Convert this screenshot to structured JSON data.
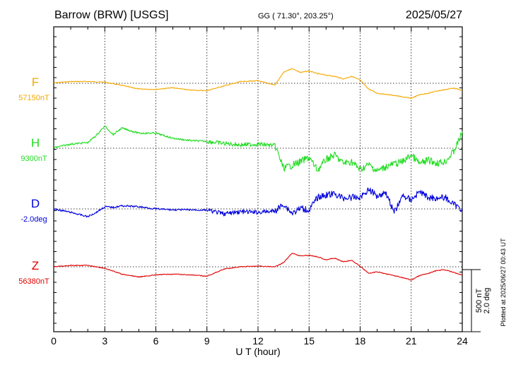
{
  "header": {
    "station": "Barrow (BRW)  [USGS]",
    "coords": "GG ( 71.30°, 203.25°)",
    "date": "2025/05/27"
  },
  "footer_note": "Plotted at 2025/06/27 00:43 UT",
  "scale_label_nt": "500 nT",
  "scale_label_deg": "2.0 deg",
  "colors": {
    "F": "#f5a800",
    "H": "#22dd22",
    "D": "#0000dd",
    "Z": "#e00000",
    "grid": "#000000"
  },
  "chart_data": {
    "type": "line",
    "title": "Barrow (BRW)  [USGS]",
    "xlabel": "U T (hour)",
    "ylabel": "",
    "xlim": [
      0,
      24
    ],
    "xticks": [
      "0",
      "3",
      "6",
      "9",
      "12",
      "15",
      "18",
      "21",
      "24"
    ],
    "grid": true,
    "scale_bar": {
      "nT": 500,
      "deg": 2.0
    },
    "series": [
      {
        "name": "F",
        "baseline_label": "57150nT",
        "unit": "nT",
        "baseline": 57150,
        "x": [
          0,
          1,
          2,
          3,
          4,
          5,
          6,
          7,
          8,
          9,
          10,
          11,
          12,
          13,
          13.5,
          14,
          14.5,
          15,
          15.5,
          16,
          16.5,
          17,
          17.5,
          18,
          18.5,
          19,
          20,
          21,
          21.5,
          22,
          22.5,
          23,
          23.5,
          24
        ],
        "values": [
          57153,
          57164,
          57164,
          57159,
          57133,
          57104,
          57101,
          57114,
          57095,
          57091,
          57129,
          57164,
          57170,
          57136,
          57237,
          57269,
          57237,
          57249,
          57227,
          57216,
          57206,
          57185,
          57206,
          57175,
          57104,
          57070,
          57052,
          57029,
          57058,
          57070,
          57088,
          57099,
          57112,
          57091
        ]
      },
      {
        "name": "H",
        "baseline_label": "9300nT",
        "unit": "nT",
        "baseline": 9300,
        "x": [
          0,
          1,
          2,
          2.5,
          3,
          3.5,
          4,
          5,
          6,
          7,
          8,
          9,
          10,
          11,
          12,
          13,
          13.5,
          14,
          14.5,
          15,
          15.5,
          16,
          16.5,
          17,
          17.5,
          18,
          18.5,
          19,
          19.5,
          20,
          20.5,
          21,
          21.5,
          22,
          22.5,
          23,
          23.5,
          24
        ],
        "values": [
          9304,
          9333,
          9345,
          9404,
          9477,
          9410,
          9462,
          9421,
          9421,
          9380,
          9362,
          9355,
          9338,
          9327,
          9333,
          9321,
          9139,
          9163,
          9192,
          9226,
          9122,
          9210,
          9245,
          9180,
          9192,
          9127,
          9168,
          9116,
          9151,
          9174,
          9191,
          9245,
          9174,
          9204,
          9180,
          9192,
          9274,
          9427
        ]
      },
      {
        "name": "D",
        "baseline_label": "-2.0deg",
        "unit": "deg",
        "baseline": -2.0,
        "x": [
          0,
          1,
          2,
          2.5,
          3,
          3.5,
          4,
          5,
          6,
          7,
          8,
          9,
          10,
          11,
          12,
          13,
          13.5,
          14,
          14.5,
          15,
          15.5,
          16,
          16.5,
          17,
          17.5,
          18,
          18.5,
          19,
          19.5,
          20,
          20.5,
          21,
          21.5,
          22,
          22.5,
          23,
          23.5,
          24
        ],
        "values": [
          -2.0,
          -2.11,
          -2.25,
          -2.11,
          -1.93,
          -1.95,
          -1.9,
          -1.93,
          -2.0,
          -2.03,
          -2.03,
          -2.04,
          -2.16,
          -2.09,
          -2.11,
          -2.07,
          -1.84,
          -2.14,
          -1.98,
          -2.04,
          -1.63,
          -1.55,
          -1.52,
          -1.65,
          -1.63,
          -1.63,
          -1.37,
          -1.58,
          -1.46,
          -2.11,
          -1.58,
          -1.7,
          -1.44,
          -1.63,
          -1.65,
          -1.63,
          -1.86,
          -2.02
        ]
      },
      {
        "name": "Z",
        "baseline_label": "56380nT",
        "unit": "nT",
        "baseline": 56380,
        "x": [
          0,
          1,
          2,
          3,
          4,
          5,
          6,
          7,
          8,
          9,
          10,
          11,
          12,
          13,
          13.5,
          14,
          14.5,
          15,
          15.5,
          16,
          16.5,
          17,
          17.5,
          18,
          18.5,
          19,
          20,
          21,
          21.5,
          22,
          22.5,
          23,
          23.5,
          24
        ],
        "values": [
          56380,
          56391,
          56391,
          56368,
          56321,
          56298,
          56315,
          56321,
          56315,
          56304,
          56362,
          56380,
          56385,
          56380,
          56414,
          56490,
          56467,
          56473,
          56461,
          56437,
          56449,
          56420,
          56432,
          56385,
          56327,
          56339,
          56309,
          56274,
          56309,
          56327,
          56350,
          56356,
          56333,
          56315
        ]
      }
    ]
  }
}
